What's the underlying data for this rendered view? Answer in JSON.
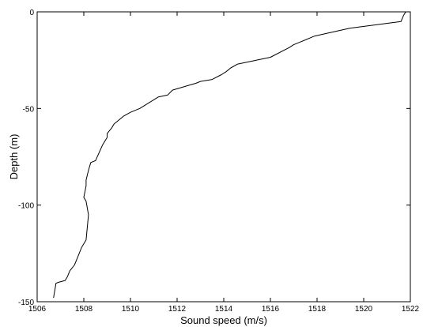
{
  "chart_data": {
    "type": "line",
    "title": "",
    "xlabel": "Sound speed (m/s)",
    "ylabel": "Depth (m)",
    "xlim": [
      1506,
      1522
    ],
    "ylim": [
      -150,
      0
    ],
    "xticks": [
      1506,
      1508,
      1510,
      1512,
      1514,
      1516,
      1518,
      1520,
      1522
    ],
    "xtick_labels": [
      "1506",
      "1508",
      "1510",
      "1512",
      "1514",
      "1516",
      "1518",
      "1520",
      "1522"
    ],
    "yticks": [
      0,
      -50,
      -100,
      -150
    ],
    "ytick_labels": [
      "0",
      "-50",
      "-100",
      "-150"
    ],
    "grid": false,
    "line_color": "#000000",
    "series": [
      {
        "x": [
          1521.8,
          1521.7,
          1521.6,
          1519.4,
          1517.9,
          1517.0,
          1516.8,
          1516.0,
          1514.6,
          1514.3,
          1514.1,
          1513.9,
          1513.5,
          1513.0,
          1512.8,
          1512.5,
          1511.8,
          1511.6,
          1511.2,
          1510.4,
          1510.0,
          1509.7,
          1509.4,
          1509.3,
          1509.2,
          1509.0,
          1509.0,
          1508.8,
          1508.5,
          1508.3,
          1508.2,
          1508.1,
          1508.1,
          1508.0,
          1508.1,
          1508.2,
          1508.1,
          1507.9,
          1507.7,
          1507.6,
          1507.4,
          1507.3,
          1507.2,
          1506.9,
          1506.8,
          1506.8,
          1506.7
        ],
        "y": [
          0,
          -2,
          -5,
          -8.5,
          -12.5,
          -17,
          -18.5,
          -23.5,
          -27,
          -29,
          -31,
          -32.5,
          -35,
          -36,
          -37,
          -38,
          -40.5,
          -43,
          -44,
          -50,
          -52,
          -54,
          -57,
          -58,
          -60,
          -63,
          -65,
          -69,
          -77,
          -78,
          -82,
          -87,
          -90,
          -96,
          -98,
          -105,
          -118,
          -122,
          -128,
          -131,
          -134,
          -137,
          -139,
          -140,
          -140.5,
          -141,
          -148
        ]
      }
    ]
  }
}
